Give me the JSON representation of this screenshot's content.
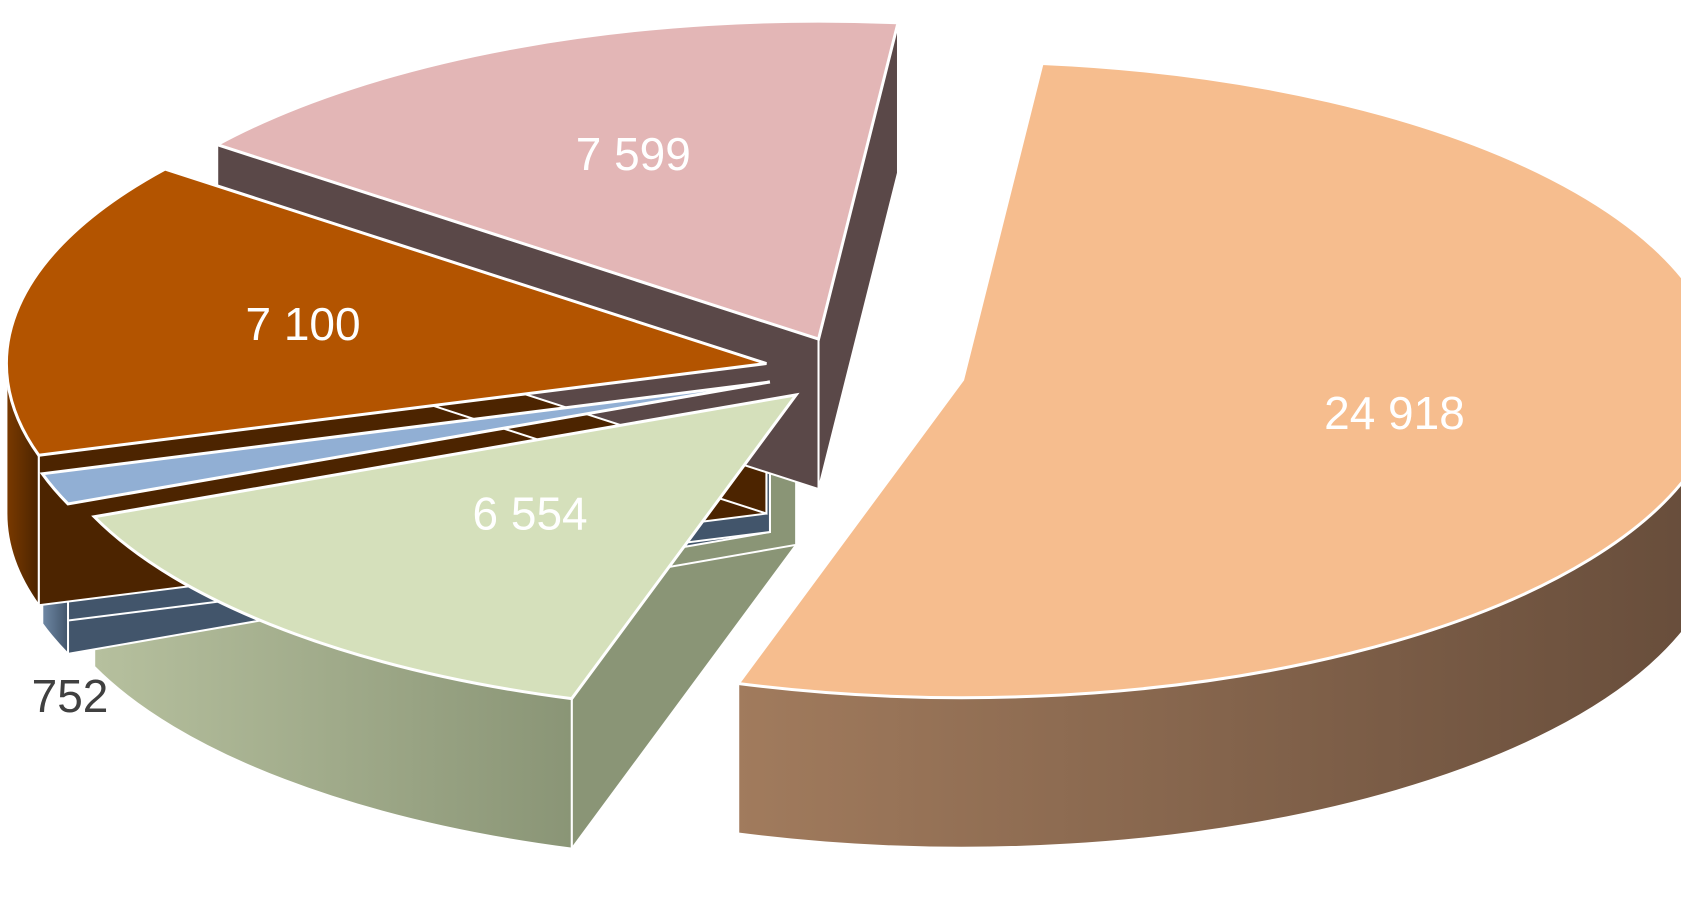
{
  "chart_data": {
    "type": "pie",
    "style": "3d-exploded",
    "slices": [
      {
        "value": 24918,
        "label": "24 918",
        "color": "#F6BD8E",
        "side": "#664C3A",
        "side_light": "#A17B5D"
      },
      {
        "value": 6554,
        "label": "6 554",
        "color": "#D5E0BB",
        "side": "#8A9576",
        "side_light": "#B6C09E"
      },
      {
        "value": 752,
        "label": "752",
        "color": "#91AFD4",
        "side": "#42556B",
        "side_light": "#6F88A5",
        "label_outside": true
      },
      {
        "value": 7100,
        "label": "7 100",
        "color": "#B35400",
        "side": "#4C2400",
        "side_light": "#7A3A00"
      },
      {
        "value": 7599,
        "label": "7 599",
        "color": "#E3B6B6",
        "side": "#5A4848",
        "side_light": "#7E6666"
      }
    ]
  }
}
